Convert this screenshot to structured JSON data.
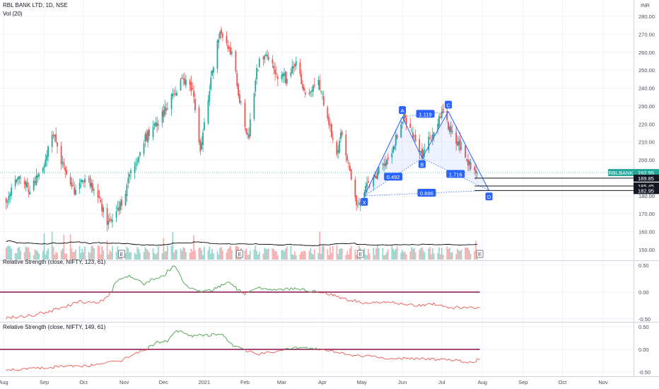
{
  "header": {
    "symbol_line": "RBL BANK LTD, 1D, NSE",
    "vol_line": "Vol (20)",
    "currency": "INR"
  },
  "colors": {
    "up": "#26a69a",
    "down": "#ef5350",
    "pattern": "#2962ff",
    "rs_up": "#43a047",
    "rs_down": "#ef5350",
    "rs_zero": "#880e4f",
    "vol_ma": "#000000",
    "price_line": "#26a69a"
  },
  "chart_data": [
    {
      "type": "candlestick",
      "symbol": "RBLBANK",
      "interval": "1D",
      "x_tick_labels": [
        "Aug",
        "Sep",
        "Oct",
        "Nov",
        "Dec",
        "2021",
        "Feb",
        "Mar",
        "Apr",
        "May",
        "Jun",
        "Jul",
        "Aug",
        "Sep",
        "Oct",
        "Nov"
      ],
      "y_tick_labels": [
        "150.00",
        "160.00",
        "170.00",
        "180.00",
        "190.00",
        "200.00",
        "210.00",
        "220.00",
        "230.00",
        "240.00",
        "250.00",
        "260.00",
        "270.00",
        "280.00"
      ],
      "ylim": [
        145,
        283
      ],
      "close_path": [
        {
          "date": "2020-08-03",
          "price": 178
        },
        {
          "date": "2020-08-12",
          "price": 192
        },
        {
          "date": "2020-08-21",
          "price": 183
        },
        {
          "date": "2020-09-01",
          "price": 199
        },
        {
          "date": "2020-09-08",
          "price": 215
        },
        {
          "date": "2020-09-15",
          "price": 197
        },
        {
          "date": "2020-09-24",
          "price": 183
        },
        {
          "date": "2020-10-01",
          "price": 188
        },
        {
          "date": "2020-10-09",
          "price": 185
        },
        {
          "date": "2020-10-19",
          "price": 166
        },
        {
          "date": "2020-10-28",
          "price": 172
        },
        {
          "date": "2020-11-05",
          "price": 190
        },
        {
          "date": "2020-11-17",
          "price": 212
        },
        {
          "date": "2020-11-30",
          "price": 225
        },
        {
          "date": "2020-12-09",
          "price": 238
        },
        {
          "date": "2020-12-16",
          "price": 245
        },
        {
          "date": "2020-12-24",
          "price": 236
        },
        {
          "date": "2020-12-29",
          "price": 202
        },
        {
          "date": "2021-01-06",
          "price": 246
        },
        {
          "date": "2021-01-13",
          "price": 271
        },
        {
          "date": "2021-01-22",
          "price": 259
        },
        {
          "date": "2021-02-01",
          "price": 218
        },
        {
          "date": "2021-02-04",
          "price": 214
        },
        {
          "date": "2021-02-10",
          "price": 252
        },
        {
          "date": "2021-02-18",
          "price": 259
        },
        {
          "date": "2021-02-26",
          "price": 247
        },
        {
          "date": "2021-03-05",
          "price": 245
        },
        {
          "date": "2021-03-12",
          "price": 255
        },
        {
          "date": "2021-03-19",
          "price": 236
        },
        {
          "date": "2021-03-29",
          "price": 243
        },
        {
          "date": "2021-04-05",
          "price": 224
        },
        {
          "date": "2021-04-12",
          "price": 203
        },
        {
          "date": "2021-04-16",
          "price": 216
        },
        {
          "date": "2021-04-23",
          "price": 189
        },
        {
          "date": "2021-04-28",
          "price": 174
        },
        {
          "date": "2021-05-05",
          "price": 185
        },
        {
          "date": "2021-05-12",
          "price": 192
        },
        {
          "date": "2021-05-19",
          "price": 197
        },
        {
          "date": "2021-05-26",
          "price": 210
        },
        {
          "date": "2021-06-02",
          "price": 224
        },
        {
          "date": "2021-06-09",
          "price": 214
        },
        {
          "date": "2021-06-16",
          "price": 204
        },
        {
          "date": "2021-06-23",
          "price": 213
        },
        {
          "date": "2021-07-01",
          "price": 225
        },
        {
          "date": "2021-07-07",
          "price": 218
        },
        {
          "date": "2021-07-14",
          "price": 208
        },
        {
          "date": "2021-07-21",
          "price": 199
        },
        {
          "date": "2021-07-28",
          "price": 193
        }
      ],
      "last_price": "192.95",
      "last_price_tag": "RBLBANK",
      "price_levels": [
        "189.85",
        "185.45",
        "182.95"
      ],
      "harmonic_pattern": {
        "points": [
          {
            "label": "X",
            "date": "2021-05-03",
            "price": 180
          },
          {
            "label": "A",
            "date": "2021-06-01",
            "price": 224
          },
          {
            "label": "B",
            "date": "2021-06-16",
            "price": 201
          },
          {
            "label": "C",
            "date": "2021-07-06",
            "price": 227
          },
          {
            "label": "D",
            "date": "2021-08-06",
            "price": 183
          }
        ],
        "ratios": [
          "1.119",
          "0.492",
          "1.716",
          "0.886"
        ]
      },
      "events": [
        "E",
        "E",
        "E",
        "E"
      ],
      "volume": {
        "label": "Vol (20)",
        "has_ma": true
      }
    },
    {
      "type": "line",
      "title": "Relative Strength (close, NIFTY, 123, 61)",
      "y_tick_labels": [
        "0.50",
        "0.00",
        "-0.50"
      ],
      "ylim": [
        -0.6,
        0.6
      ],
      "zero_line": 0.0,
      "points": [
        {
          "date": "2020-08-03",
          "value": -0.48
        },
        {
          "date": "2020-08-25",
          "value": -0.42
        },
        {
          "date": "2020-09-10",
          "value": -0.33
        },
        {
          "date": "2020-09-28",
          "value": -0.18
        },
        {
          "date": "2020-10-12",
          "value": -0.2
        },
        {
          "date": "2020-10-20",
          "value": -0.1
        },
        {
          "date": "2020-10-26",
          "value": 0.2
        },
        {
          "date": "2020-11-05",
          "value": 0.3
        },
        {
          "date": "2020-11-16",
          "value": 0.15
        },
        {
          "date": "2020-11-24",
          "value": 0.25
        },
        {
          "date": "2020-12-02",
          "value": 0.33
        },
        {
          "date": "2020-12-10",
          "value": 0.5
        },
        {
          "date": "2020-12-18",
          "value": 0.12
        },
        {
          "date": "2020-12-30",
          "value": 0.02
        },
        {
          "date": "2021-01-08",
          "value": 0.05
        },
        {
          "date": "2021-01-20",
          "value": 0.18
        },
        {
          "date": "2021-02-01",
          "value": -0.05
        },
        {
          "date": "2021-02-10",
          "value": 0.08
        },
        {
          "date": "2021-02-25",
          "value": 0.03
        },
        {
          "date": "2021-03-10",
          "value": 0.06
        },
        {
          "date": "2021-03-24",
          "value": 0.02
        },
        {
          "date": "2021-04-08",
          "value": -0.05
        },
        {
          "date": "2021-04-22",
          "value": -0.15
        },
        {
          "date": "2021-05-06",
          "value": -0.2
        },
        {
          "date": "2021-05-24",
          "value": -0.18
        },
        {
          "date": "2021-06-10",
          "value": -0.25
        },
        {
          "date": "2021-06-24",
          "value": -0.22
        },
        {
          "date": "2021-07-08",
          "value": -0.28
        },
        {
          "date": "2021-07-22",
          "value": -0.3
        },
        {
          "date": "2021-07-30",
          "value": -0.28
        }
      ]
    },
    {
      "type": "line",
      "title": "Relative Strength (close, NIFTY, 149, 61)",
      "y_tick_labels": [
        "0.50",
        "0.00",
        "-0.50"
      ],
      "ylim": [
        -0.6,
        0.6
      ],
      "zero_line": 0.0,
      "points": [
        {
          "date": "2020-08-03",
          "value": -0.45
        },
        {
          "date": "2020-08-25",
          "value": -0.42
        },
        {
          "date": "2020-09-15",
          "value": -0.38
        },
        {
          "date": "2020-10-06",
          "value": -0.36
        },
        {
          "date": "2020-10-20",
          "value": -0.3
        },
        {
          "date": "2020-10-30",
          "value": -0.25
        },
        {
          "date": "2020-11-09",
          "value": -0.1
        },
        {
          "date": "2020-11-18",
          "value": 0.0
        },
        {
          "date": "2020-11-26",
          "value": 0.15
        },
        {
          "date": "2020-12-04",
          "value": 0.18
        },
        {
          "date": "2020-12-11",
          "value": 0.42
        },
        {
          "date": "2020-12-22",
          "value": 0.3
        },
        {
          "date": "2021-01-06",
          "value": 0.32
        },
        {
          "date": "2021-01-15",
          "value": 0.35
        },
        {
          "date": "2021-01-22",
          "value": 0.1
        },
        {
          "date": "2021-02-01",
          "value": -0.02
        },
        {
          "date": "2021-02-12",
          "value": -0.1
        },
        {
          "date": "2021-02-26",
          "value": -0.05
        },
        {
          "date": "2021-03-12",
          "value": 0.04
        },
        {
          "date": "2021-03-26",
          "value": 0.02
        },
        {
          "date": "2021-04-09",
          "value": -0.05
        },
        {
          "date": "2021-04-23",
          "value": -0.14
        },
        {
          "date": "2021-05-07",
          "value": -0.15
        },
        {
          "date": "2021-05-24",
          "value": -0.2
        },
        {
          "date": "2021-06-10",
          "value": -0.2
        },
        {
          "date": "2021-06-28",
          "value": -0.22
        },
        {
          "date": "2021-07-14",
          "value": -0.25
        },
        {
          "date": "2021-07-24",
          "value": -0.3
        },
        {
          "date": "2021-07-30",
          "value": -0.22
        }
      ]
    }
  ]
}
